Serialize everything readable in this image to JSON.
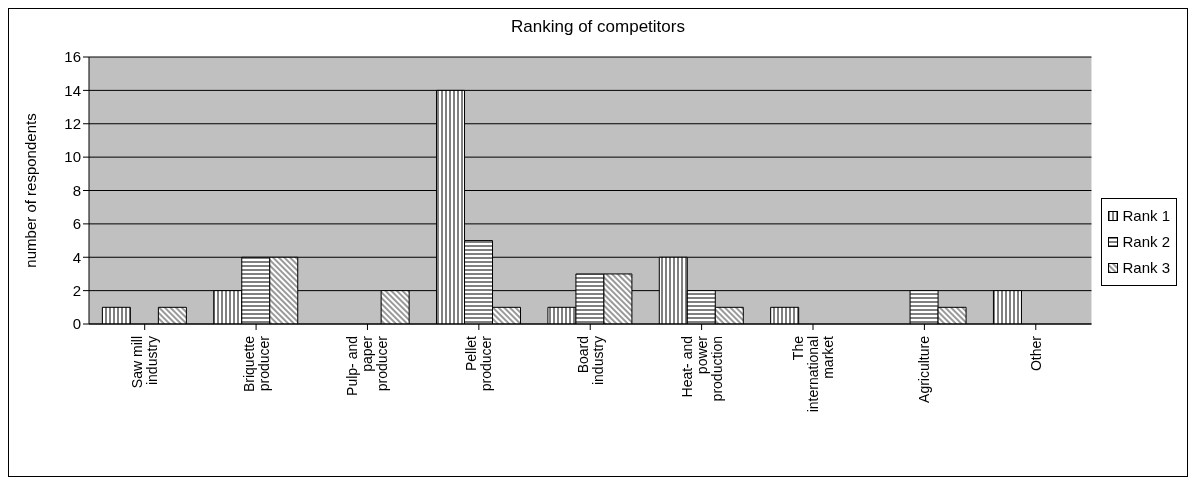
{
  "chart_data": {
    "type": "bar",
    "title": "Ranking of competitors",
    "ylabel": "number of respondents",
    "categories": [
      "Saw mill industry",
      "Briquette producer",
      "Pulp- and paper producer",
      "Pellet producer",
      "Board industry",
      "Heat- and power production",
      "The international market",
      "Agriculture",
      "Other"
    ],
    "series": [
      {
        "name": "Rank 1",
        "color": "#000000",
        "values": [
          1,
          2,
          0,
          14,
          1,
          4,
          1,
          0,
          2
        ]
      },
      {
        "name": "Rank 2",
        "color": "#000000",
        "values": [
          0,
          4,
          0,
          5,
          3,
          2,
          0,
          2,
          0
        ]
      },
      {
        "name": "Rank 3",
        "color": "#000000",
        "values": [
          1,
          4,
          2,
          1,
          3,
          1,
          0,
          1,
          0
        ]
      }
    ],
    "ylim": [
      0,
      16
    ],
    "yticks": [
      0,
      2,
      4,
      6,
      8,
      10,
      12,
      14,
      16
    ],
    "grid": "y",
    "legend": "right"
  }
}
